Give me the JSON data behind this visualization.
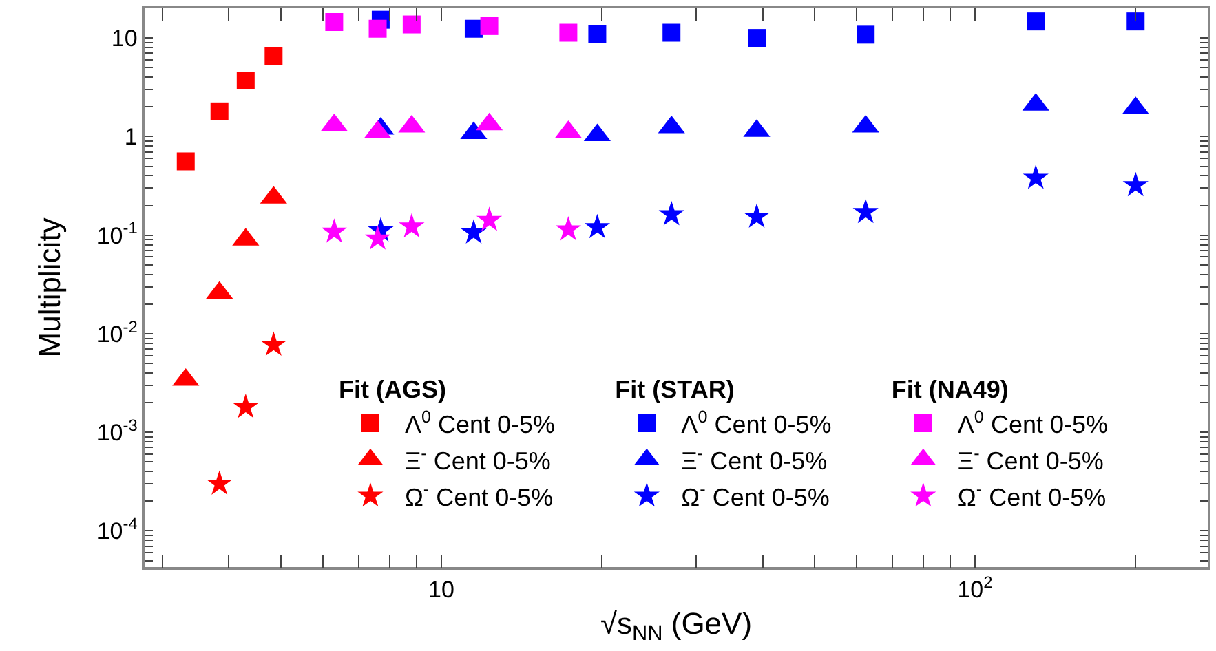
{
  "chart_data": {
    "type": "scatter",
    "xlabel": "√s$_{NN}$ (GeV)",
    "ylabel": "Multiplicity",
    "log": "xy",
    "legend": "bottom",
    "legend_title": [
      "Fit (AGS)",
      "Fit (STAR)",
      "Fit (NA49)"
    ],
    "xlim": [
      2.78,
      273
    ],
    "ylim": [
      4.3e-05,
      20
    ],
    "xticks": [
      {
        "value": 3,
        "label": null
      },
      {
        "value": 4,
        "label": null
      },
      {
        "value": 5,
        "label": null
      },
      {
        "value": 6,
        "label": null
      },
      {
        "value": 7,
        "label": null
      },
      {
        "value": 8,
        "label": null
      },
      {
        "value": 9,
        "label": null
      },
      10,
      {
        "value": 20,
        "label": null
      },
      {
        "value": 30,
        "label": null
      },
      {
        "value": 40,
        "label": null
      },
      {
        "value": 50,
        "label": null
      },
      {
        "value": 60,
        "label": null
      },
      {
        "value": 70,
        "label": null
      },
      {
        "value": 80,
        "label": null
      },
      {
        "value": 90,
        "label": null
      },
      {
        "value": 100,
        "label": "10$^{2}$"
      },
      {
        "value": 200,
        "label": null
      }
    ],
    "yticks": [
      {
        "value": 5e-05,
        "label": null
      },
      {
        "value": 6e-05,
        "label": null
      },
      {
        "value": 7e-05,
        "label": null
      },
      {
        "value": 8e-05,
        "label": null
      },
      {
        "value": 9e-05,
        "label": null
      },
      {
        "value": 0.0001,
        "label": "10$^{-4}$"
      },
      {
        "value": 0.0002,
        "label": null
      },
      {
        "value": 0.0003,
        "label": null
      },
      {
        "value": 0.0004,
        "label": null
      },
      {
        "value": 0.0005,
        "label": null
      },
      {
        "value": 0.0006,
        "label": null
      },
      {
        "value": 0.0007,
        "label": null
      },
      {
        "value": 0.0008,
        "label": null
      },
      {
        "value": 0.0009,
        "label": null
      },
      {
        "value": 0.001,
        "label": "10$^{-3}$"
      },
      {
        "value": 0.002,
        "label": null
      },
      {
        "value": 0.003,
        "label": null
      },
      {
        "value": 0.004,
        "label": null
      },
      {
        "value": 0.005,
        "label": null
      },
      {
        "value": 0.006,
        "label": null
      },
      {
        "value": 0.007,
        "label": null
      },
      {
        "value": 0.008,
        "label": null
      },
      {
        "value": 0.009,
        "label": null
      },
      {
        "value": 0.01,
        "label": "10$^{-2}$"
      },
      {
        "value": 0.02,
        "label": null
      },
      {
        "value": 0.03,
        "label": null
      },
      {
        "value": 0.04,
        "label": null
      },
      {
        "value": 0.05,
        "label": null
      },
      {
        "value": 0.06,
        "label": null
      },
      {
        "value": 0.07,
        "label": null
      },
      {
        "value": 0.08,
        "label": null
      },
      {
        "value": 0.09,
        "label": null
      },
      {
        "value": 0.1,
        "label": "10$^{-1}$"
      },
      {
        "value": 0.2,
        "label": null
      },
      {
        "value": 0.3,
        "label": null
      },
      {
        "value": 0.4,
        "label": null
      },
      {
        "value": 0.5,
        "label": null
      },
      {
        "value": 0.6,
        "label": null
      },
      {
        "value": 0.7,
        "label": null
      },
      {
        "value": 0.8,
        "label": null
      },
      {
        "value": 0.9,
        "label": null
      },
      1,
      {
        "value": 2,
        "label": null
      },
      {
        "value": 3,
        "label": null
      },
      {
        "value": 4,
        "label": null
      },
      {
        "value": 5,
        "label": null
      },
      {
        "value": 6,
        "label": null
      },
      {
        "value": 7,
        "label": null
      },
      {
        "value": 8,
        "label": null
      },
      {
        "value": 9,
        "label": null
      },
      10,
      {
        "value": 20,
        "label": null
      }
    ],
    "series": [
      {
        "name": "Λ$^{0}$ Cent 0-5%",
        "color": "#ff0000",
        "marker": "square",
        "x": [
          3.32,
          3.84,
          4.3,
          4.85
        ],
        "values": [
          0.56,
          1.8,
          3.7,
          6.6
        ]
      },
      {
        "name": "Ξ$^{-}$ Cent 0-5%",
        "color": "#ff0000",
        "marker": "triangle",
        "x": [
          3.32,
          3.84,
          4.3,
          4.85
        ],
        "values": [
          0.0034,
          0.026,
          0.09,
          0.24
        ]
      },
      {
        "name": "Ω$^{-}$ Cent 0-5%",
        "color": "#ff0000",
        "marker": "star",
        "x": [
          3.84,
          4.3,
          4.85
        ],
        "values": [
          0.0003,
          0.0018,
          0.0077
        ]
      },
      {
        "name": "Λ$^{0}$ Cent 0-5%",
        "color": "#0000ff",
        "marker": "square",
        "x": [
          7.7,
          11.5,
          19.6,
          27,
          39,
          62.4,
          130,
          200
        ],
        "values": [
          15.3,
          12.4,
          10.9,
          11.3,
          10.0,
          10.8,
          14.7,
          14.7
        ]
      },
      {
        "name": "Ξ$^{-}$ Cent 0-5%",
        "color": "#0000ff",
        "marker": "triangle",
        "x": [
          7.7,
          11.5,
          19.6,
          27,
          39,
          62.4,
          130,
          200
        ],
        "values": [
          1.2,
          1.08,
          1.03,
          1.24,
          1.14,
          1.26,
          2.1,
          1.94
        ]
      },
      {
        "name": "Ω$^{-}$ Cent 0-5%",
        "color": "#0000ff",
        "marker": "star",
        "x": [
          7.7,
          11.5,
          19.6,
          27,
          39,
          62.4,
          130,
          200
        ],
        "values": [
          0.111,
          0.106,
          0.12,
          0.162,
          0.153,
          0.171,
          0.38,
          0.32
        ]
      },
      {
        "name": "Λ$^{0}$ Cent 0-5%",
        "color": "#ff00ff",
        "marker": "square",
        "x": [
          6.3,
          7.6,
          8.8,
          12.3,
          17.3
        ],
        "values": [
          14.5,
          12.4,
          13.7,
          13.2,
          11.3
        ]
      },
      {
        "name": "Ξ$^{-}$ Cent 0-5%",
        "color": "#ff00ff",
        "marker": "triangle",
        "x": [
          6.3,
          7.6,
          8.8,
          12.3,
          17.3
        ],
        "values": [
          1.3,
          1.11,
          1.26,
          1.33,
          1.11
        ]
      },
      {
        "name": "Ω$^{-}$ Cent 0-5%",
        "color": "#ff00ff",
        "marker": "star",
        "x": [
          6.3,
          7.6,
          8.8,
          12.3,
          17.3
        ],
        "values": [
          0.108,
          0.092,
          0.122,
          0.142,
          0.114
        ]
      }
    ]
  }
}
